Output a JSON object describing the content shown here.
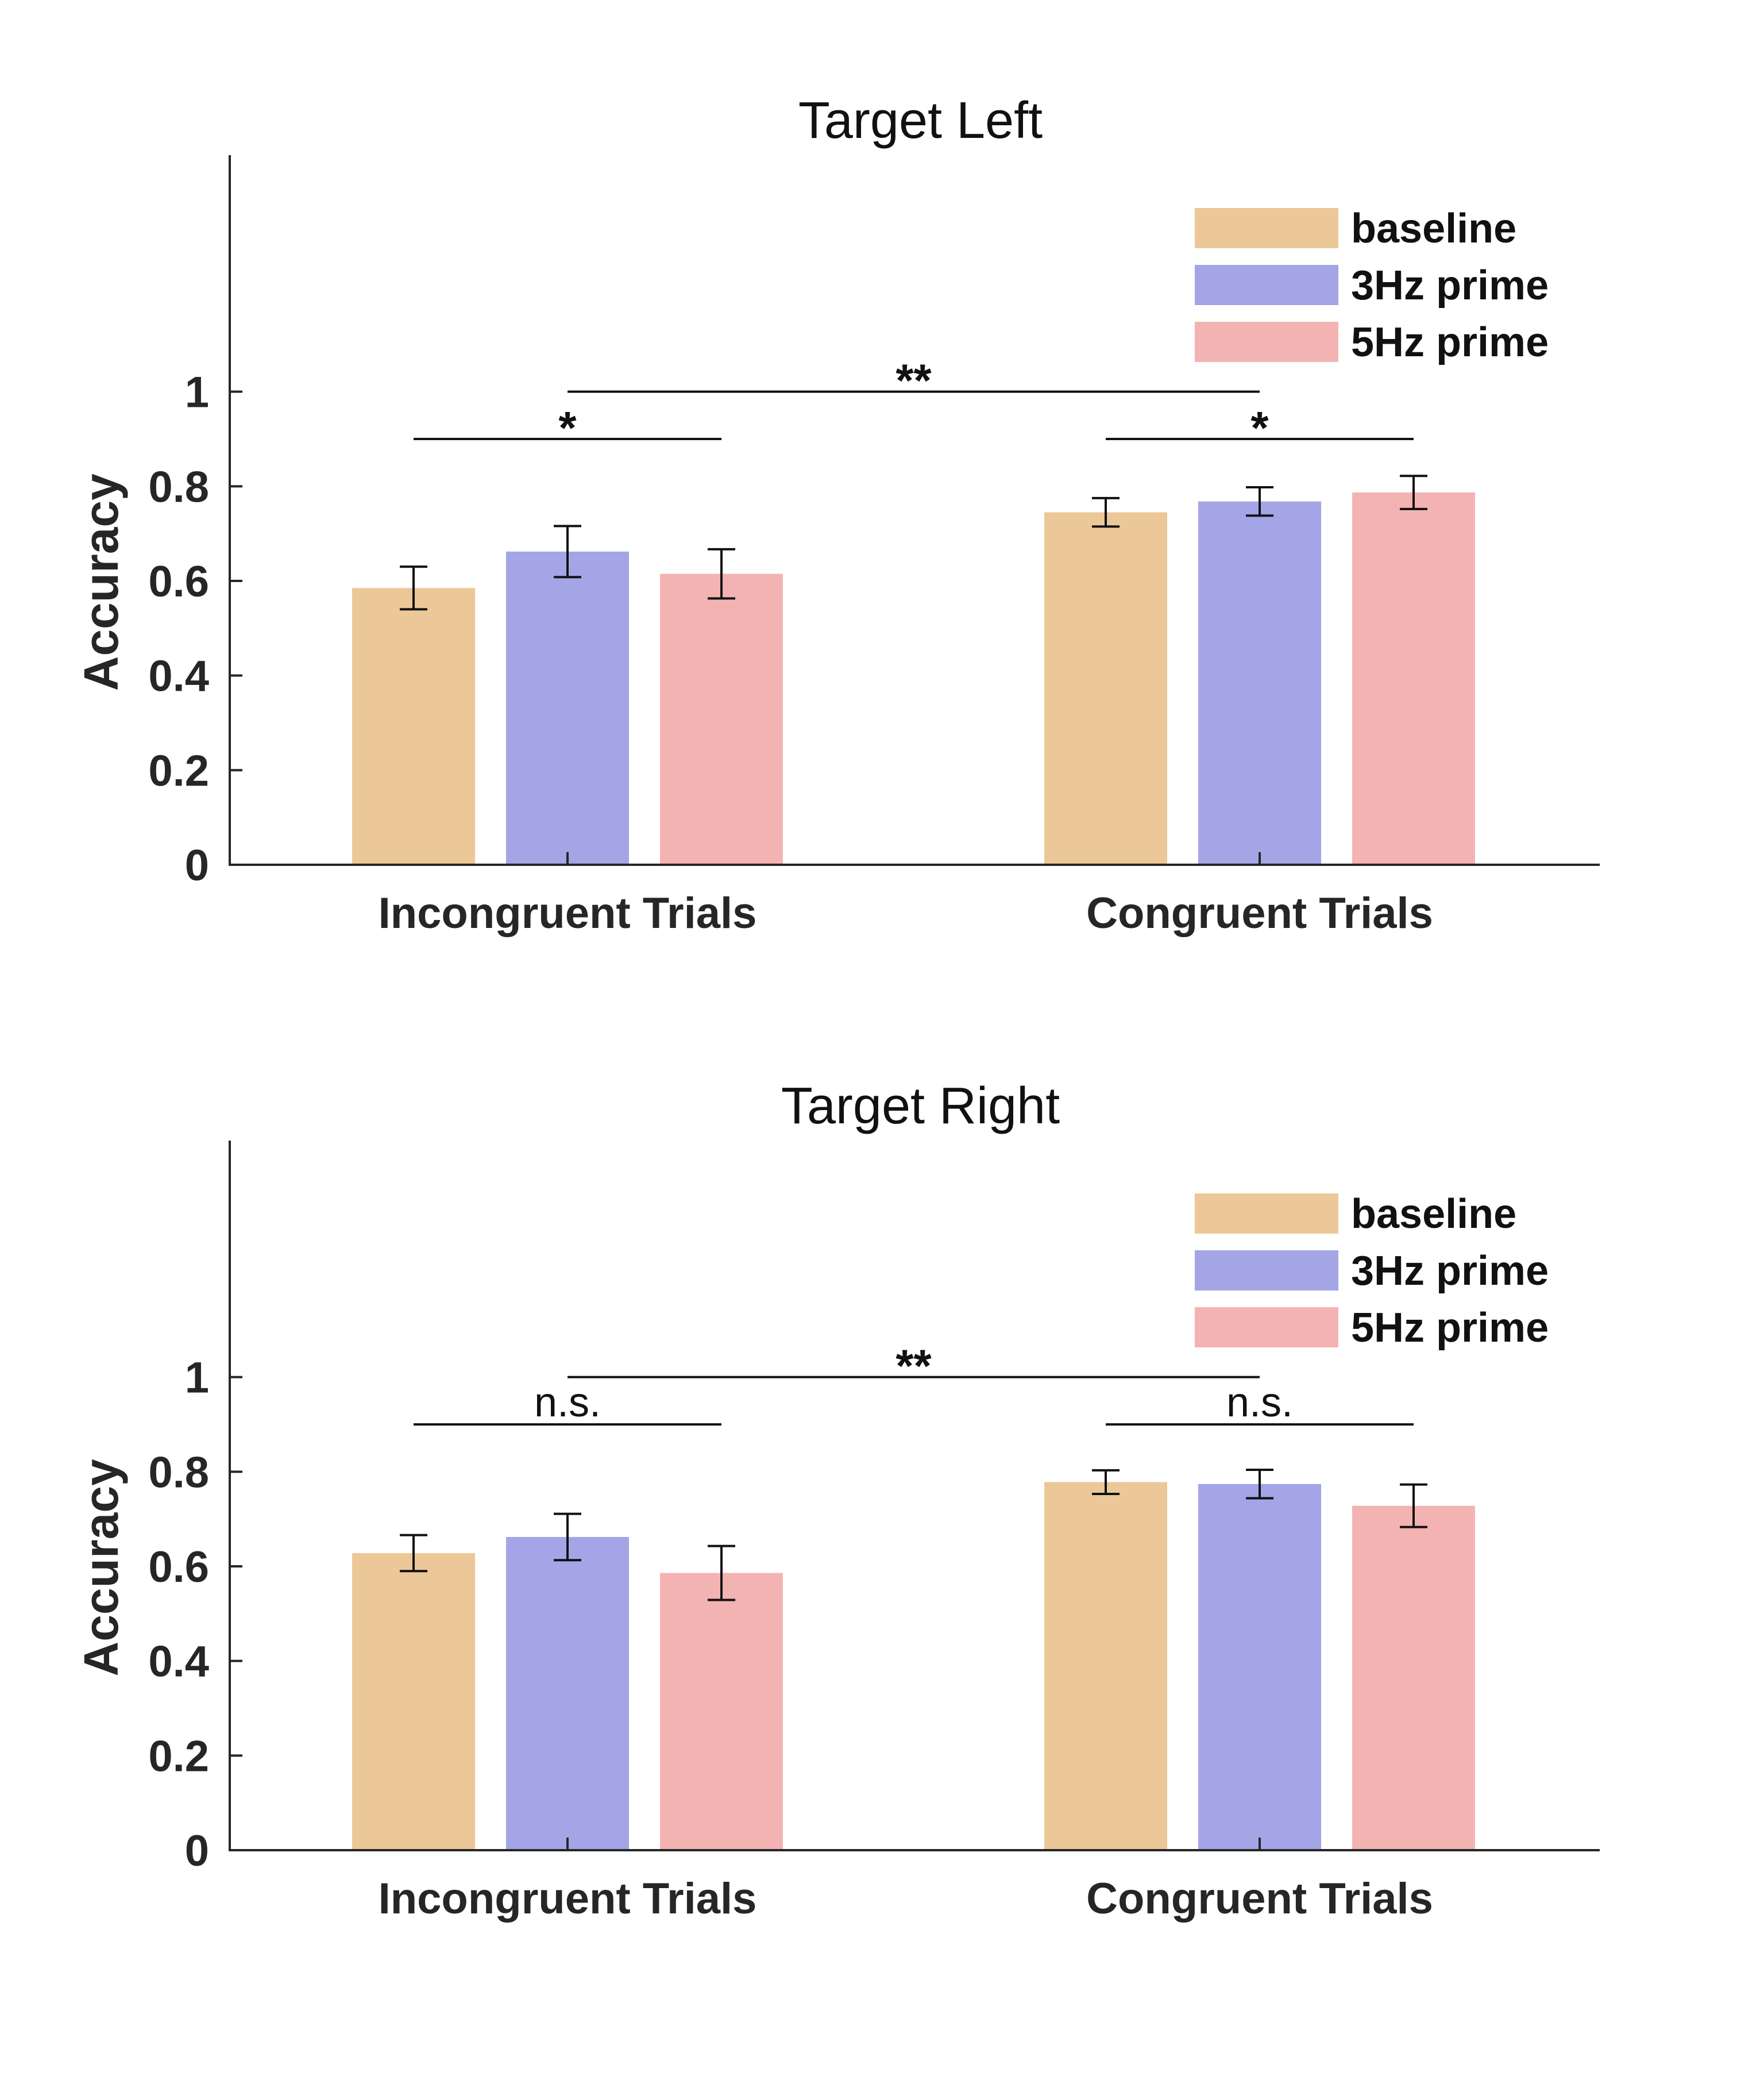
{
  "chart_data": [
    {
      "type": "bar",
      "title": "Target Left",
      "xlabel": "",
      "ylabel": "Accuracy",
      "categories": [
        "Incongruent Trials",
        "Congruent Trials"
      ],
      "ylim": [
        0,
        1.5
      ],
      "yticks": [
        0,
        0.2,
        0.4,
        0.6,
        0.8,
        1
      ],
      "ytick_labels": [
        "0",
        "0.2",
        "0.4",
        "0.6",
        "0.8",
        "1"
      ],
      "legend_position": "top-right",
      "grid": false,
      "series": [
        {
          "name": "baseline",
          "color": "#ECC898",
          "values": [
            0.585,
            0.745
          ],
          "errors": [
            0.045,
            0.03
          ]
        },
        {
          "name": "3Hz prime",
          "color": "#A3A5E6",
          "values": [
            0.662,
            0.768
          ],
          "errors": [
            0.054,
            0.03
          ]
        },
        {
          "name": "5Hz prime",
          "color": "#F4B3B3",
          "values": [
            0.615,
            0.787
          ],
          "errors": [
            0.052,
            0.035
          ]
        }
      ],
      "significance": [
        {
          "label": "*",
          "level": 0.9,
          "from": {
            "category": 0,
            "series": 0
          },
          "to": {
            "category": 0,
            "series": 2
          }
        },
        {
          "label": "*",
          "level": 0.9,
          "from": {
            "category": 1,
            "series": 0
          },
          "to": {
            "category": 1,
            "series": 2
          }
        },
        {
          "label": "**",
          "level": 1.0,
          "from": {
            "category": 0,
            "series": 1
          },
          "to": {
            "category": 1,
            "series": 1
          }
        }
      ]
    },
    {
      "type": "bar",
      "title": "Target Right",
      "xlabel": "",
      "ylabel": "Accuracy",
      "categories": [
        "Incongruent Trials",
        "Congruent Trials"
      ],
      "ylim": [
        0,
        1.5
      ],
      "yticks": [
        0,
        0.2,
        0.4,
        0.6,
        0.8,
        1
      ],
      "ytick_labels": [
        "0",
        "0.2",
        "0.4",
        "0.6",
        "0.8",
        "1"
      ],
      "legend_position": "top-right",
      "grid": false,
      "series": [
        {
          "name": "baseline",
          "color": "#ECC898",
          "values": [
            0.628,
            0.778
          ],
          "errors": [
            0.038,
            0.025
          ]
        },
        {
          "name": "3Hz prime",
          "color": "#A3A5E6",
          "values": [
            0.662,
            0.774
          ],
          "errors": [
            0.049,
            0.03
          ]
        },
        {
          "name": "5Hz prime",
          "color": "#F4B3B3",
          "values": [
            0.586,
            0.728
          ],
          "errors": [
            0.057,
            0.045
          ]
        }
      ],
      "significance": [
        {
          "label": "n.s.",
          "level": 0.9,
          "from": {
            "category": 0,
            "series": 0
          },
          "to": {
            "category": 0,
            "series": 2
          }
        },
        {
          "label": "n.s.",
          "level": 0.9,
          "from": {
            "category": 1,
            "series": 0
          },
          "to": {
            "category": 1,
            "series": 2
          }
        },
        {
          "label": "**",
          "level": 1.0,
          "from": {
            "category": 0,
            "series": 1
          },
          "to": {
            "category": 1,
            "series": 1
          }
        }
      ]
    }
  ]
}
